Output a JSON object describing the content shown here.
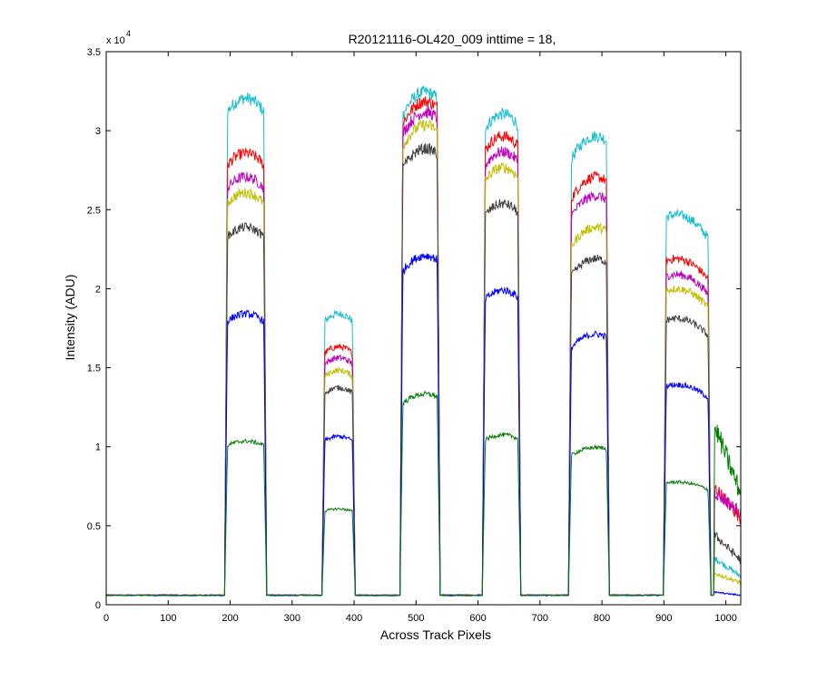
{
  "chart_data": {
    "type": "line",
    "title": "R20121116-OL420_009 inttime = 18,",
    "xlabel": "Across Track Pixels",
    "ylabel": "Intensity (ADU)",
    "y_exponent_prefix": "x 10",
    "y_exponent_power": "4",
    "xlim": [
      0,
      1024
    ],
    "ylim": [
      0,
      3.5
    ],
    "x_ticks": [
      0,
      100,
      200,
      300,
      400,
      500,
      600,
      700,
      800,
      900,
      1000
    ],
    "y_ticks": [
      0,
      0.5,
      1,
      1.5,
      2,
      2.5,
      3,
      3.5
    ],
    "x_tick_labels": [
      "0",
      "100",
      "200",
      "300",
      "400",
      "500",
      "600",
      "700",
      "800",
      "900",
      "1000"
    ],
    "y_tick_labels": [
      "0",
      "0.5",
      "1",
      "1.5",
      "2",
      "2.5",
      "3",
      "3.5"
    ],
    "grid": false,
    "baseline": 0.06,
    "segments": [
      {
        "start": 195,
        "end": 255,
        "peak_x": 225
      },
      {
        "start": 352,
        "end": 398,
        "peak_x": 375
      },
      {
        "start": 478,
        "end": 535,
        "peak_x": 515
      },
      {
        "start": 611,
        "end": 665,
        "peak_x": 640
      },
      {
        "start": 750,
        "end": 808,
        "peak_x": 790
      },
      {
        "start": 903,
        "end": 972,
        "peak_x": 920
      }
    ],
    "tail": {
      "start": 980,
      "end": 1024
    },
    "series": [
      {
        "color": "#17becf",
        "peaks": [
          3.22,
          1.85,
          3.26,
          3.12,
          2.98,
          2.48
        ],
        "tail": [
          0.3,
          0.18
        ]
      },
      {
        "color": "#ff0000",
        "peaks": [
          2.87,
          1.64,
          3.2,
          2.98,
          2.72,
          2.2
        ],
        "tail": [
          0.75,
          0.55
        ]
      },
      {
        "color": "#bf00bf",
        "peaks": [
          2.72,
          1.57,
          3.13,
          2.88,
          2.6,
          2.1
        ],
        "tail": [
          0.72,
          0.58
        ]
      },
      {
        "color": "#bfbf00",
        "peaks": [
          2.62,
          1.49,
          3.05,
          2.78,
          2.4,
          2.01
        ],
        "tail": [
          0.2,
          0.14
        ]
      },
      {
        "color": "#404040",
        "peaks": [
          2.4,
          1.38,
          2.9,
          2.55,
          2.2,
          1.82
        ],
        "tail": [
          0.45,
          0.28
        ]
      },
      {
        "color": "#0000ff",
        "peaks": [
          1.85,
          1.07,
          2.22,
          2.0,
          1.72,
          1.4
        ],
        "tail": [
          0.08,
          0.06
        ]
      },
      {
        "color": "#007f00",
        "peaks": [
          1.04,
          0.61,
          1.34,
          1.08,
          1.0,
          0.78
        ],
        "tail": [
          1.15,
          0.7
        ]
      }
    ]
  }
}
